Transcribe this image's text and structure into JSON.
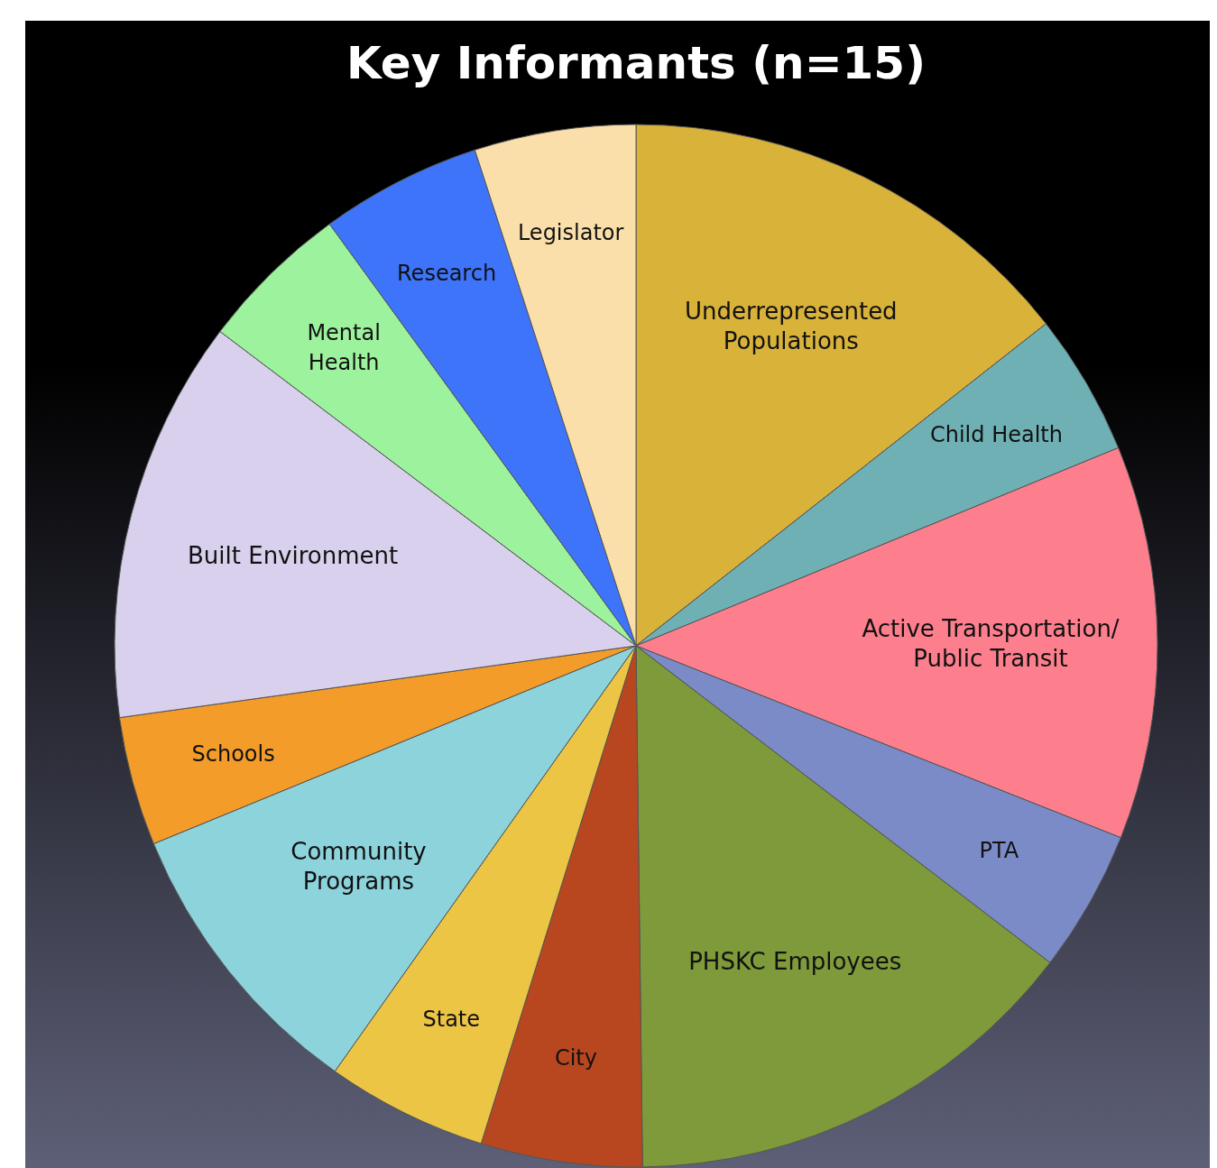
{
  "chart_data": {
    "type": "pie",
    "title": "Key Informants (n=15)",
    "categories": [
      "Underrepresented Populations",
      "Child Health",
      "Active Transportation/ Public Transit",
      "PTA",
      "PHSKC Employees",
      "City",
      "State",
      "Community Programs",
      "Schools",
      "Built Environment",
      "Mental Health",
      "Research",
      "Legislator"
    ],
    "values": [
      14.4,
      4.4,
      12.2,
      4.4,
      14.4,
      5,
      5,
      9,
      4,
      12.5,
      4.7,
      5,
      5
    ],
    "colors": [
      "#d9b23a",
      "#6fb0b4",
      "#fd7f8e",
      "#7b8bc8",
      "#7e9a3a",
      "#b8471f",
      "#ecc545",
      "#8dd3dc",
      "#f39c2a",
      "#d8d0ec",
      "#9df29d",
      "#3d74fa",
      "#fbdfab"
    ]
  }
}
